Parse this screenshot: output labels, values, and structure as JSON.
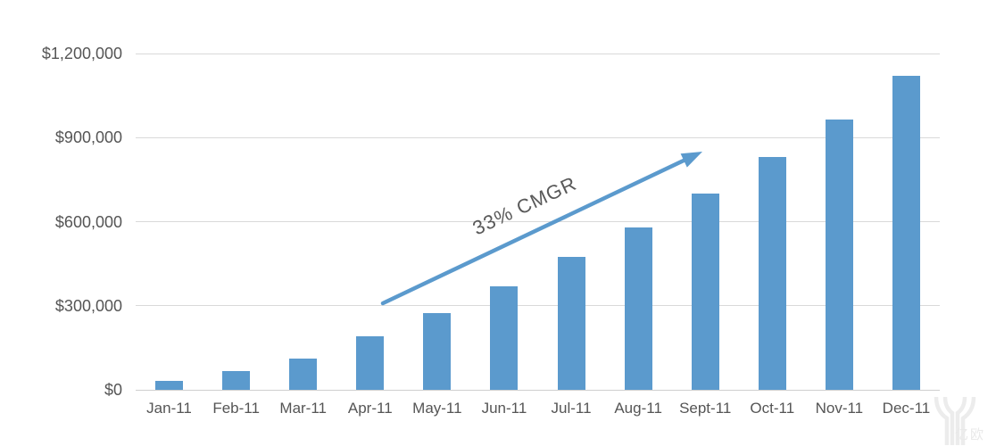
{
  "chart_data": {
    "type": "bar",
    "title": "",
    "xlabel": "",
    "ylabel": "",
    "categories": [
      "Jan-11",
      "Feb-11",
      "Mar-11",
      "Apr-11",
      "May-11",
      "Jun-11",
      "Jul-11",
      "Aug-11",
      "Sept-11",
      "Oct-11",
      "Nov-11",
      "Dec-11"
    ],
    "values": [
      33000,
      66000,
      110000,
      190000,
      275000,
      370000,
      475000,
      580000,
      700000,
      830000,
      965000,
      1120000
    ],
    "ylim": [
      0,
      1200000
    ],
    "yticks": [
      {
        "value": 0,
        "label": "$0"
      },
      {
        "value": 300000,
        "label": "$300,000"
      },
      {
        "value": 600000,
        "label": "$600,000"
      },
      {
        "value": 900000,
        "label": "$900,000"
      },
      {
        "value": 1200000,
        "label": "$1,200,000"
      }
    ],
    "grid": true,
    "legend": false,
    "annotation": {
      "label": "33% CMGR",
      "arrow_from_month": "Apr-11",
      "arrow_from_value": 300000,
      "arrow_to_month": "Sept-11",
      "arrow_to_value": 850000
    },
    "colors": {
      "bar": "#5b9acd",
      "arrow": "#5b9acd",
      "gridline": "#d9d9d9",
      "axis_text": "#555555",
      "annotation_text": "#595959"
    }
  },
  "watermark": {
    "logo": "yiou-logo",
    "text": "亿欧"
  }
}
